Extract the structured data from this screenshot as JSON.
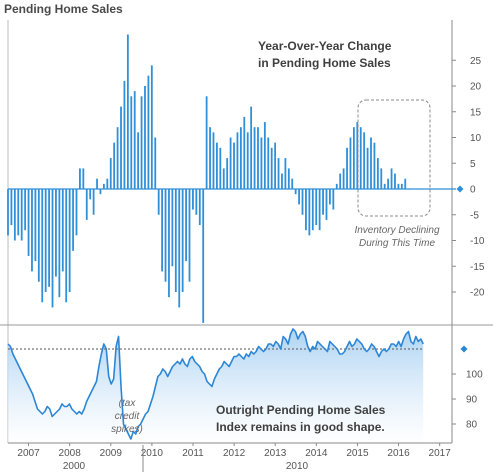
{
  "title": "Pending Home Sales",
  "chart_data": [
    {
      "type": "bar",
      "role": "top",
      "series_name": "",
      "color": "#2f8fd8",
      "annotation": {
        "lines": [
          "Year-Over-Year Change",
          "in Pending Home Sales"
        ]
      },
      "note": {
        "lines": [
          "Inventory Declining",
          "During This Time"
        ]
      },
      "y_ticks": [
        25,
        20,
        15,
        10,
        5,
        0,
        -5,
        -10,
        -15,
        -20
      ],
      "ylim": [
        -25,
        31
      ],
      "last_value": 0,
      "current_marker": 0,
      "x_start": 2006.5,
      "x_step": 0.0833,
      "values": [
        -9,
        -7,
        -10,
        -9,
        -10,
        -8,
        -13,
        -16,
        -14,
        -18,
        -22,
        -20,
        -19,
        -23,
        -17,
        -21,
        -16,
        -22,
        -20,
        -12,
        -9,
        4,
        4,
        -6,
        -2,
        -5,
        2,
        -1,
        1,
        2,
        6,
        9,
        12,
        16,
        21,
        30,
        18,
        19,
        11,
        18,
        20,
        22,
        24,
        10,
        -5,
        -16,
        -18,
        -21,
        -15,
        -20,
        -23,
        -20,
        -14,
        -18,
        -4,
        -5,
        -7,
        -26,
        18,
        12,
        11,
        9,
        8,
        4,
        6,
        10,
        9,
        11,
        12,
        14,
        11,
        16,
        12,
        12,
        10,
        13,
        10,
        8,
        9,
        6,
        3,
        6,
        4,
        2,
        -1,
        -3,
        -5,
        -8,
        -9,
        -8,
        -7,
        -8,
        -5,
        -6,
        -3,
        -4,
        1,
        3,
        4,
        8,
        10,
        12,
        13,
        12,
        11,
        8,
        10,
        9,
        6,
        4,
        1,
        2,
        4,
        3,
        1,
        1,
        2,
        0
      ]
    },
    {
      "type": "area",
      "role": "bottom",
      "series_name": "",
      "color": "#2c86d6",
      "annotation": {
        "lines": [
          "Outright Pending Home Sales",
          "Index remains in good shape."
        ]
      },
      "note": {
        "lines": [
          "(tax",
          "credit",
          "spikes)"
        ]
      },
      "y_ticks": [
        100,
        90,
        80
      ],
      "ylim": [
        73,
        123
      ],
      "reference_line": 110,
      "x_start": 2006.5,
      "x_step": 0.0833,
      "values": [
        112,
        111,
        108,
        106,
        104,
        102,
        100,
        98,
        96,
        94,
        92,
        89,
        86,
        85,
        84,
        85,
        87,
        86,
        83,
        84,
        85,
        86,
        88,
        87,
        87,
        88,
        86,
        85,
        84,
        85,
        84,
        86,
        89,
        91,
        93,
        95,
        97,
        103,
        108,
        112,
        110,
        99,
        96,
        98,
        111,
        115,
        95,
        80,
        78,
        76,
        74,
        77,
        76,
        79,
        80,
        82,
        84,
        85,
        88,
        91,
        95,
        99,
        100,
        102,
        101,
        99,
        101,
        103,
        104,
        105,
        104,
        106,
        104,
        103,
        106,
        107,
        105,
        104,
        103,
        101,
        100,
        97,
        96,
        95,
        98,
        100,
        102,
        103,
        105,
        104,
        103,
        105,
        107,
        107,
        108,
        107,
        106,
        108,
        107,
        109,
        108,
        109,
        111,
        110,
        109,
        110,
        112,
        112,
        111,
        113,
        112,
        110,
        115,
        114,
        112,
        116,
        118,
        117,
        114,
        116,
        117,
        115,
        111,
        109,
        111,
        110,
        113,
        112,
        111,
        110,
        109,
        113,
        112,
        111,
        110,
        108,
        108,
        109,
        111,
        113,
        111,
        112,
        114,
        113,
        112,
        110,
        109,
        110,
        112,
        111,
        109,
        107,
        109,
        110,
        109,
        110,
        112,
        112,
        111,
        113,
        111,
        114,
        116,
        117,
        113,
        112,
        115,
        113,
        114,
        112
      ],
      "x_labels": [
        "2007",
        "2008",
        "2009",
        "2010",
        "2011",
        "2012",
        "2013",
        "2014",
        "2015",
        "2016",
        "2017"
      ],
      "group_labels": [
        "2000",
        "2010"
      ]
    }
  ]
}
